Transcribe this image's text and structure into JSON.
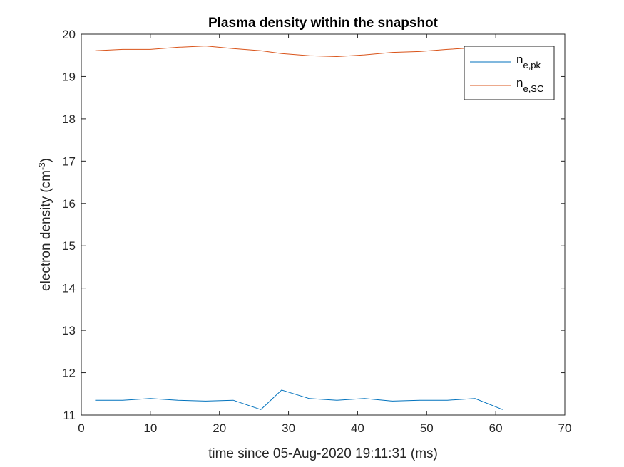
{
  "chart_data": {
    "type": "line",
    "title": "Plasma density within the snapshot",
    "xlabel": "time since 05-Aug-2020 19:11:31 (ms)",
    "ylabel": {
      "base": "electron density (cm",
      "sup": "-3",
      "close": ")"
    },
    "xlim": [
      0,
      70
    ],
    "ylim": [
      11,
      20
    ],
    "xticks": [
      0,
      10,
      20,
      30,
      40,
      50,
      60,
      70
    ],
    "yticks": [
      11,
      12,
      13,
      14,
      15,
      16,
      17,
      18,
      19,
      20
    ],
    "grid": false,
    "legend_position": "top-right",
    "series": [
      {
        "name": "n_e,pk",
        "label_base": "n",
        "label_sub": "e,pk",
        "color": "#0072BD",
        "x": [
          2,
          6,
          10,
          14,
          18,
          22,
          26,
          29,
          33,
          37,
          41,
          45,
          49,
          53,
          57,
          61
        ],
        "y": [
          11.35,
          11.35,
          11.39,
          11.35,
          11.33,
          11.35,
          11.13,
          11.59,
          11.39,
          11.35,
          11.39,
          11.33,
          11.35,
          11.35,
          11.39,
          11.13
        ]
      },
      {
        "name": "n_e,SC",
        "label_base": "n",
        "label_sub": "e,SC",
        "color": "#D95319",
        "x": [
          2,
          6,
          10,
          14,
          18,
          22,
          26,
          29,
          33,
          37,
          41,
          45,
          49,
          53,
          57,
          61
        ],
        "y": [
          19.61,
          19.64,
          19.64,
          19.69,
          19.72,
          19.66,
          19.61,
          19.54,
          19.49,
          19.47,
          19.51,
          19.57,
          19.59,
          19.64,
          19.68,
          19.69
        ]
      }
    ]
  }
}
